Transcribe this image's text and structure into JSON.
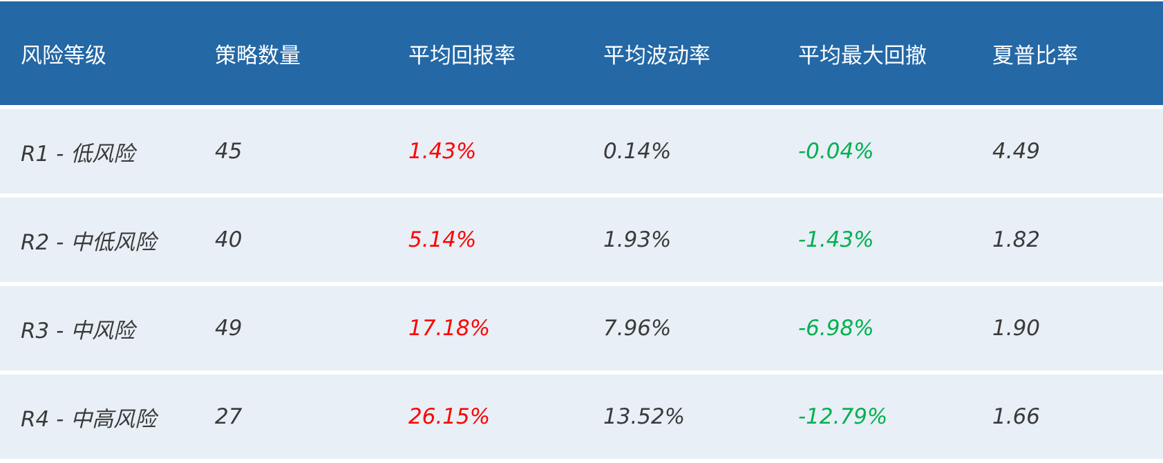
{
  "colors": {
    "header_bg": "#2468a6",
    "row_bg": "#e8eff6",
    "positive": "#ff0000",
    "negative": "#00b050"
  },
  "headers": [
    "风险等级",
    "策略数量",
    "平均回报率",
    "平均波动率",
    "平均最大回撤",
    "夏普比率"
  ],
  "rows": [
    {
      "level": "R1 - 低风险",
      "count": "45",
      "return": "1.43%",
      "volatility": "0.14%",
      "drawdown": "-0.04%",
      "sharpe": "4.49"
    },
    {
      "level": "R2 - 中低风险",
      "count": "40",
      "return": "5.14%",
      "volatility": "1.93%",
      "drawdown": "-1.43%",
      "sharpe": "1.82"
    },
    {
      "level": "R3 - 中风险",
      "count": "49",
      "return": "17.18%",
      "volatility": "7.96%",
      "drawdown": "-6.98%",
      "sharpe": "1.90"
    },
    {
      "level": "R4 - 中高风险",
      "count": "27",
      "return": "26.15%",
      "volatility": "13.52%",
      "drawdown": "-12.79%",
      "sharpe": "1.66"
    }
  ]
}
